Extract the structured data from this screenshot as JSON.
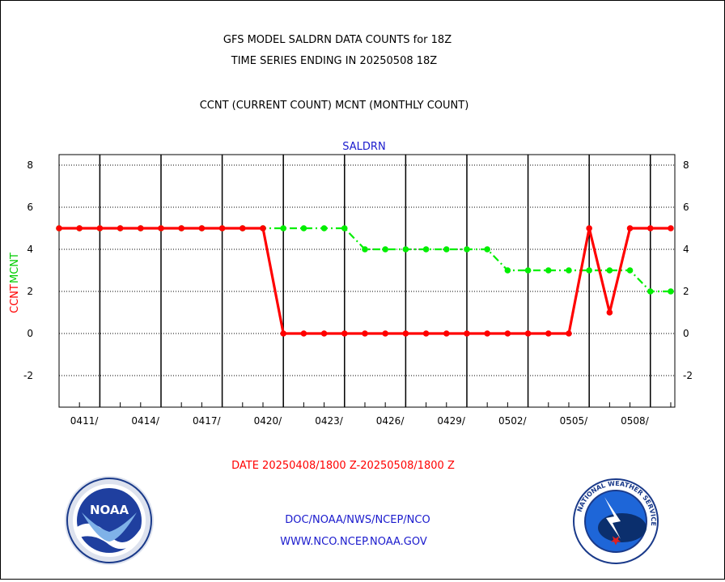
{
  "header": {
    "title_line1": "GFS MODEL SALDRN DATA COUNTS for 18Z",
    "title_line2": "TIME SERIES ENDING IN 20250508 18Z",
    "subtitle": "CCNT (CURRENT COUNT) MCNT (MONTHLY COUNT)"
  },
  "footer": {
    "date_range": "DATE 20250408/1800 Z-20250508/1800 Z",
    "org": "DOC/NOAA/NWS/NCEP/NCO",
    "url": "WWW.NCO.NCEP.NOAA.GOV",
    "noaa_logo_text": "NOAA",
    "nws_logo_text": "NATIONAL WEATHER SERVICE"
  },
  "colors": {
    "ccnt": "#ff0000",
    "mcnt": "#00ee00",
    "plot_label": "#1a1acd"
  },
  "chart_data": {
    "type": "line",
    "title": "SALDRN",
    "ylabel_left": "CCNT",
    "ylabel_right": "MCNT",
    "ylim": [
      -3.5,
      8.5
    ],
    "xlim": [
      0,
      30.2
    ],
    "yticks": [
      -2,
      0,
      2,
      4,
      6,
      8
    ],
    "ytick_labels": [
      "-2",
      "0",
      "2",
      "4",
      "6",
      "8"
    ],
    "xticks": [
      2,
      5,
      8,
      11,
      14,
      17,
      20,
      23,
      26,
      29
    ],
    "xtick_labels": [
      "0411/",
      "0414/",
      "0417/",
      "0420/",
      "0423/",
      "0426/",
      "0429/",
      "0502/",
      "0505/",
      "0508/"
    ],
    "grid": true,
    "series": [
      {
        "name": "CCNT",
        "style": "solid",
        "x": [
          0,
          1,
          2,
          3,
          4,
          5,
          6,
          7,
          8,
          9,
          10,
          11,
          12,
          13,
          14,
          15,
          16,
          17,
          18,
          19,
          20,
          21,
          22,
          23,
          24,
          25,
          26,
          27,
          28,
          29,
          30
        ],
        "values": [
          5,
          5,
          5,
          5,
          5,
          5,
          5,
          5,
          5,
          5,
          5,
          0,
          0,
          0,
          0,
          0,
          0,
          0,
          0,
          0,
          0,
          0,
          0,
          0,
          0,
          0,
          5,
          1,
          5,
          5,
          5
        ]
      },
      {
        "name": "MCNT",
        "style": "dash-dot",
        "x": [
          0,
          1,
          2,
          3,
          4,
          5,
          6,
          7,
          8,
          9,
          10,
          11,
          12,
          13,
          14,
          15,
          16,
          17,
          18,
          19,
          20,
          21,
          22,
          23,
          24,
          25,
          26,
          27,
          28,
          29,
          30
        ],
        "values": [
          5,
          5,
          5,
          5,
          5,
          5,
          5,
          5,
          5,
          5,
          5,
          5,
          5,
          5,
          5,
          4,
          4,
          4,
          4,
          4,
          4,
          4,
          3,
          3,
          3,
          3,
          3,
          3,
          3,
          2,
          2
        ]
      }
    ]
  }
}
